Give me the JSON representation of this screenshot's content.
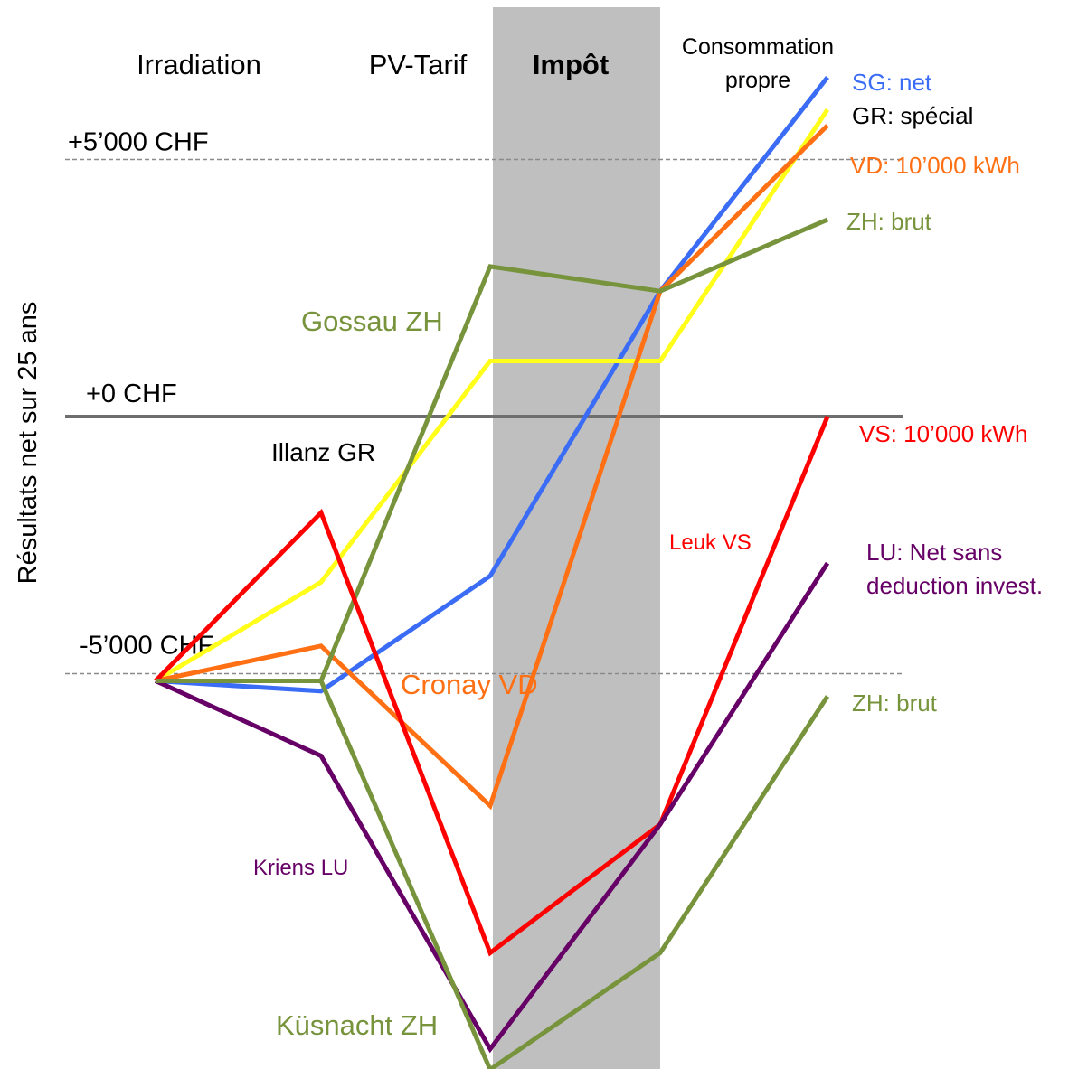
{
  "chart_data": {
    "type": "line",
    "ylabel": "Résultats net sur 25 ans",
    "categories": [
      "",
      "Irradiation",
      "PV-Tarif",
      "Impôt",
      "Consommation propre"
    ],
    "category_lines": [
      "",
      "Irradiation",
      "PV-Tarif",
      "Impôt",
      "Consommation\npropre"
    ],
    "highlight_category": "Impôt",
    "highlight_color": "#bfbfbf",
    "ylim": [
      -9300,
      7200
    ],
    "reference_lines": [
      {
        "value": 5000,
        "label": "+5’000 CHF",
        "style": "dashed"
      },
      {
        "value": 0,
        "label": "+0 CHF",
        "style": "solid"
      },
      {
        "value": -5000,
        "label": "-5’000 CHF",
        "style": "dashed"
      }
    ],
    "series": [
      {
        "name": "SG: net",
        "color": "#3b6cf5",
        "values": [
          -5140,
          -5340,
          -3100,
          2440,
          6600
        ]
      },
      {
        "name": "GR: spécial",
        "color": "#ffff1a",
        "values": [
          -5140,
          -3220,
          1080,
          1080,
          5970
        ]
      },
      {
        "name": "VD: 10’000 kWh",
        "color": "#ff7014",
        "values": [
          -5140,
          -4460,
          -7570,
          2440,
          5660
        ]
      },
      {
        "name": "ZH: brut",
        "color": "#77933c",
        "values": [
          -5140,
          -5140,
          2920,
          2440,
          3830
        ]
      },
      {
        "name": "VS: 10’000 kWh",
        "color": "#ff0000",
        "values": [
          -5140,
          -1870,
          -10430,
          -7930,
          0
        ]
      },
      {
        "name": "LU: Net sans deduction invest.",
        "color": "#660066",
        "values": [
          -5140,
          -6600,
          -12300,
          -7930,
          -2850
        ]
      },
      {
        "name": "ZH: brut",
        "color": "#77933c",
        "values": [
          -5140,
          -5140,
          -12700,
          -10430,
          -5440
        ]
      }
    ],
    "legend_labels": [
      {
        "text": "SG: net",
        "color": "#3b6cf5"
      },
      {
        "text": "GR: spécial",
        "color": "#000000"
      },
      {
        "text": "VD: 10’000 kWh",
        "color": "#ff7014"
      },
      {
        "text": "ZH: brut",
        "color": "#77933c"
      },
      {
        "text": "VS: 10’000 kWh",
        "color": "#ff0000"
      },
      {
        "text": "LU: Net sans\ndeduction invest.",
        "color": "#660066"
      },
      {
        "text": "ZH: brut",
        "color": "#77933c"
      }
    ],
    "annotations": [
      {
        "text": "Gossau ZH",
        "color": "#77933c"
      },
      {
        "text": "Illanz GR",
        "color": "#000000"
      },
      {
        "text": "Leuk VS",
        "color": "#ff0000"
      },
      {
        "text": "Cronay VD",
        "color": "#ff7014"
      },
      {
        "text": "Kriens LU",
        "color": "#660066"
      },
      {
        "text": "Küsnacht ZH",
        "color": "#77933c"
      }
    ]
  }
}
